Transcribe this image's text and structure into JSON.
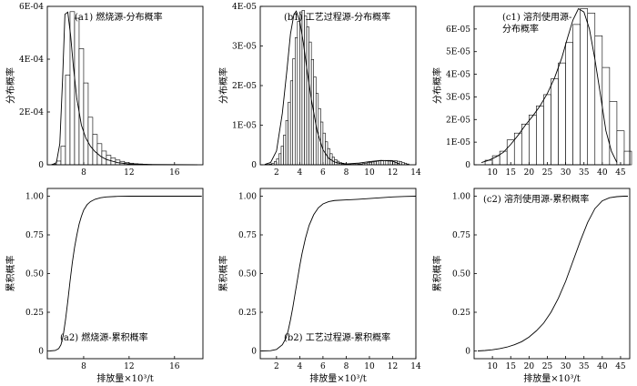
{
  "chart_data": [
    {
      "id": "a1",
      "type": "bar",
      "title": "(a1) 燃烧源-分布概率",
      "ylabel": "分布概率",
      "xlabel": "",
      "xlim": [
        4.8,
        18.5
      ],
      "ylim": [
        0,
        0.0006
      ],
      "x_ticks": [
        8,
        12,
        16
      ],
      "x_tick_labels": [
        "8",
        "12",
        "16"
      ],
      "y_ticks": [
        0,
        0.0002,
        0.0004,
        0.0006
      ],
      "y_tick_labels": [
        "0",
        "2E-04",
        "4E-04",
        "6E-04"
      ],
      "bars": {
        "x_start": 5.2,
        "bin_width": 0.4,
        "values": [
          2e-06,
          1.4e-05,
          7e-05,
          0.00034,
          0.00058,
          0.000555,
          0.00044,
          0.00031,
          0.00018,
          0.000115,
          8e-05,
          5.2e-05,
          3.6e-05,
          2.6e-05,
          1.8e-05,
          1.3e-05,
          9e-06,
          6e-06,
          4e-06,
          3e-06,
          2e-06,
          1e-06
        ]
      },
      "curve": {
        "x": [
          5.2,
          5.6,
          5.9,
          6.15,
          6.35,
          6.6,
          6.85,
          7.1,
          7.4,
          7.8,
          8.2,
          8.6,
          9.0,
          9.5,
          10.0,
          11.0,
          12.0,
          14.0,
          16.0,
          18.0
        ],
        "y": [
          0,
          8e-06,
          8e-05,
          0.00033,
          0.00057,
          0.000578,
          0.00049,
          0.00037,
          0.00025,
          0.00015,
          0.0001,
          7e-05,
          5e-05,
          3.2e-05,
          2e-05,
          8e-06,
          3e-06,
          1e-06,
          5e-07,
          0
        ]
      }
    },
    {
      "id": "b1",
      "type": "bar",
      "title": "(b1) 工艺过程源-分布概率",
      "ylabel": "分布概率",
      "xlabel": "",
      "xlim": [
        0.6,
        14
      ],
      "ylim": [
        0,
        4e-05
      ],
      "x_ticks": [
        2,
        4,
        6,
        8,
        10,
        12,
        14
      ],
      "x_tick_labels": [
        "2",
        "4",
        "6",
        "8",
        "10",
        "12",
        "14"
      ],
      "y_ticks": [
        0,
        1e-05,
        2e-05,
        3e-05,
        4e-05
      ],
      "y_tick_labels": [
        "0",
        "1E-05",
        "2E-05",
        "3E-05",
        "4E-05"
      ],
      "bars": {
        "x_start": 1.0,
        "bin_width": 0.2,
        "values": [
          1e-07,
          1e-07,
          2e-07,
          4e-07,
          8e-07,
          1.5e-06,
          2.8e-06,
          4.7e-06,
          7.5e-06,
          1.12e-05,
          1.58e-05,
          2.12e-05,
          2.68e-05,
          3.21e-05,
          3.62e-05,
          3.86e-05,
          3.9e-05,
          3.76e-05,
          3.48e-05,
          3.1e-05,
          2.66e-05,
          2.22e-05,
          1.8e-05,
          1.42e-05,
          1.08e-05,
          8e-06,
          5.8e-06,
          4.1e-06,
          2.8e-06,
          1.9e-06,
          1.3e-06,
          9e-07,
          6e-07,
          4e-07,
          3e-07,
          2e-07,
          2e-07,
          1e-07,
          1e-07,
          1e-07,
          2e-07,
          2e-07,
          3e-07,
          4e-07,
          5e-07,
          6e-07,
          7e-07,
          8e-07,
          9e-07,
          1e-06,
          1e-06,
          1.1e-06,
          1.1e-06,
          1.1e-06,
          1.1e-06,
          1e-06,
          1e-06,
          9e-07,
          8e-07,
          6e-07,
          4e-07,
          2e-07
        ]
      },
      "curve": {
        "x": [
          1.0,
          1.5,
          2.0,
          2.5,
          2.9,
          3.2,
          3.5,
          3.7,
          4.0,
          4.3,
          4.6,
          5.0,
          5.5,
          6.0,
          6.5,
          7.0,
          7.5,
          8.0,
          9.0,
          10.0,
          11.0,
          12.0,
          12.6
        ],
        "y": [
          1e-07,
          6e-07,
          3.5e-06,
          1.3e-05,
          2.4e-05,
          3.3e-05,
          3.8e-05,
          3.88e-05,
          3.62e-05,
          3.1e-05,
          2.45e-05,
          1.65e-05,
          8.5e-06,
          3.8e-06,
          1.6e-06,
          7e-07,
          3e-07,
          2e-07,
          4e-07,
          8e-07,
          1.1e-06,
          9e-07,
          2e-07
        ]
      }
    },
    {
      "id": "c1",
      "type": "bar",
      "title": "(c1) 溶剂使用源-分布概率",
      "title_lines": [
        "(c1) 溶剂使用源-",
        "分布概率"
      ],
      "ylabel": "分布概率",
      "xlabel": "",
      "xlim": [
        5,
        47.5
      ],
      "ylim": [
        0,
        7e-05
      ],
      "x_ticks": [
        10,
        15,
        20,
        25,
        30,
        35,
        40,
        45
      ],
      "x_tick_labels": [
        "10",
        "15",
        "20",
        "25",
        "30",
        "35",
        "40",
        "45"
      ],
      "y_ticks": [
        0,
        1e-05,
        2e-05,
        3e-05,
        4e-05,
        5e-05,
        6e-05
      ],
      "y_tick_labels": [
        "0",
        "1E-05",
        "2E-05",
        "3E-05",
        "4E-05",
        "5E-05",
        "6E-05"
      ],
      "bars": {
        "x_start": 8,
        "bin_width": 2,
        "values": [
          2e-06,
          4e-06,
          6e-06,
          1.1e-05,
          1.4e-05,
          1.8e-05,
          2.2e-05,
          2.6e-05,
          3.1e-05,
          3.8e-05,
          4.5e-05,
          5.4e-05,
          6.2e-05,
          6.9e-05,
          6.7e-05,
          5.7e-05,
          4.3e-05,
          2.8e-05,
          1.5e-05,
          6e-06
        ]
      },
      "curve": {
        "x": [
          7,
          9,
          11,
          13,
          15,
          17,
          19,
          21,
          23,
          25,
          27,
          29,
          30.5,
          32,
          33.5,
          35,
          36.5,
          38,
          39.5,
          41,
          42.5,
          44
        ],
        "y": [
          1e-06,
          2e-06,
          3.5e-06,
          5.5e-06,
          9e-06,
          1.3e-05,
          1.75e-05,
          2.15e-05,
          2.6e-05,
          3.15e-05,
          3.85e-05,
          4.75e-05,
          5.6e-05,
          6.4e-05,
          6.9e-05,
          6.75e-05,
          6e-05,
          4.65e-05,
          3.1e-05,
          1.5e-05,
          6e-06,
          1e-06
        ]
      }
    },
    {
      "id": "a2",
      "type": "line",
      "title": "(a2) 燃烧源-累积概率",
      "ylabel": "累积概率",
      "xlabel": "排放量×10³/t",
      "xlim": [
        4.8,
        18.5
      ],
      "ylim": [
        -0.05,
        1.05
      ],
      "x_ticks": [
        8,
        12,
        16
      ],
      "x_tick_labels": [
        "8",
        "12",
        "16"
      ],
      "y_ticks": [
        0,
        0.25,
        0.5,
        0.75,
        1.0
      ],
      "y_tick_labels": [
        "0",
        "0.25",
        "0.50",
        "0.75",
        "1.00"
      ],
      "curve": {
        "x": [
          5.0,
          5.5,
          5.8,
          6.0,
          6.2,
          6.4,
          6.6,
          6.8,
          7.0,
          7.2,
          7.4,
          7.6,
          7.8,
          8.0,
          8.3,
          8.6,
          9.0,
          9.5,
          10.0,
          11.0,
          12.0,
          14.0,
          18.4
        ],
        "y": [
          0.0,
          0.003,
          0.015,
          0.04,
          0.1,
          0.2,
          0.32,
          0.45,
          0.57,
          0.67,
          0.75,
          0.82,
          0.87,
          0.91,
          0.945,
          0.965,
          0.98,
          0.99,
          0.995,
          0.999,
          1.0,
          1.0,
          1.0
        ]
      }
    },
    {
      "id": "b2",
      "type": "line",
      "title": "(b2) 工艺过程源-累积概率",
      "ylabel": "累积概率",
      "xlabel": "排放量×10³/t",
      "xlim": [
        0.6,
        14
      ],
      "ylim": [
        -0.05,
        1.05
      ],
      "x_ticks": [
        2,
        4,
        6,
        8,
        10,
        12,
        14
      ],
      "x_tick_labels": [
        "2",
        "4",
        "6",
        "8",
        "10",
        "12",
        "14"
      ],
      "y_ticks": [
        0,
        0.25,
        0.5,
        0.75,
        1.0
      ],
      "y_tick_labels": [
        "0",
        "0.25",
        "0.50",
        "0.75",
        "1.00"
      ],
      "curve": {
        "x": [
          0.7,
          1.5,
          2.0,
          2.5,
          2.8,
          3.0,
          3.2,
          3.4,
          3.6,
          3.8,
          4.0,
          4.2,
          4.5,
          4.8,
          5.2,
          5.6,
          6.0,
          6.5,
          7.0,
          8.0,
          9.0,
          10.0,
          11.0,
          12.0,
          13.0,
          14.0
        ],
        "y": [
          0.0,
          0.002,
          0.01,
          0.04,
          0.08,
          0.13,
          0.2,
          0.28,
          0.37,
          0.46,
          0.55,
          0.63,
          0.73,
          0.81,
          0.88,
          0.925,
          0.95,
          0.965,
          0.972,
          0.976,
          0.98,
          0.985,
          0.99,
          0.995,
          0.998,
          1.0
        ]
      }
    },
    {
      "id": "c2",
      "type": "line",
      "title": "(c2) 溶剂使用源-累积概率",
      "ylabel": "累积概率",
      "xlabel": "排放量×10³/t",
      "xlim": [
        5,
        47.5
      ],
      "ylim": [
        -0.05,
        1.05
      ],
      "x_ticks": [
        10,
        15,
        20,
        25,
        30,
        35,
        40,
        45
      ],
      "x_tick_labels": [
        "10",
        "15",
        "20",
        "25",
        "30",
        "35",
        "40",
        "45"
      ],
      "y_ticks": [
        0,
        0.25,
        0.5,
        0.75,
        1.0
      ],
      "y_tick_labels": [
        "0",
        "0.25",
        "0.50",
        "0.75",
        "1.00"
      ],
      "curve": {
        "x": [
          6,
          8,
          10,
          12,
          14,
          16,
          18,
          20,
          22,
          24,
          26,
          28,
          30,
          32,
          34,
          36,
          38,
          40,
          42,
          44,
          46,
          47
        ],
        "y": [
          0.0,
          0.003,
          0.008,
          0.015,
          0.025,
          0.04,
          0.06,
          0.09,
          0.13,
          0.18,
          0.25,
          0.34,
          0.45,
          0.58,
          0.71,
          0.83,
          0.92,
          0.97,
          0.99,
          0.997,
          1.0,
          1.0
        ]
      }
    }
  ]
}
